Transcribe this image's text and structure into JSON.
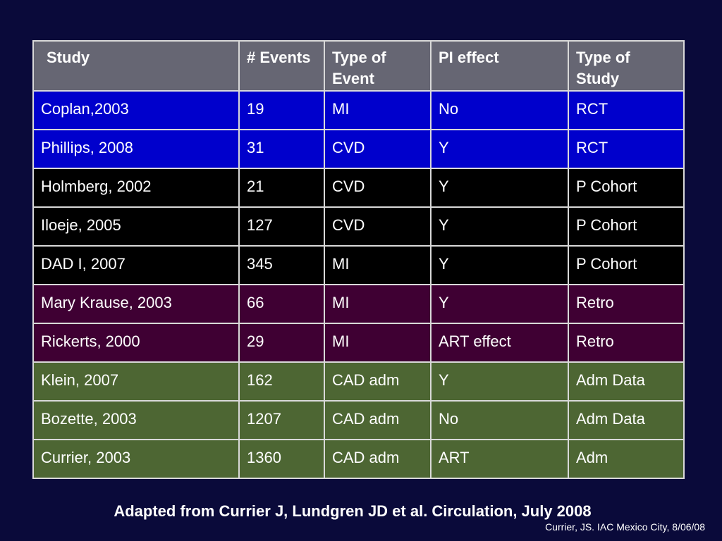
{
  "table": {
    "headers": [
      "Study",
      "# Events",
      "Type of Event",
      "PI effect",
      "Type of Study"
    ],
    "rows": [
      {
        "cells": [
          "Coplan,2003",
          "19",
          "MI",
          "No",
          "RCT"
        ],
        "color": "#0000cc"
      },
      {
        "cells": [
          "Phillips, 2008",
          "31",
          "CVD",
          "Y",
          "RCT"
        ],
        "color": "#0000cc"
      },
      {
        "cells": [
          "Holmberg, 2002",
          "21",
          "CVD",
          "Y",
          "P Cohort"
        ],
        "color": "#000000"
      },
      {
        "cells": [
          "Iloeje, 2005",
          "127",
          "CVD",
          "Y",
          "P Cohort"
        ],
        "color": "#000000"
      },
      {
        "cells": [
          "DAD I, 2007",
          "345",
          "MI",
          "Y",
          "P Cohort"
        ],
        "color": "#000000"
      },
      {
        "cells": [
          "Mary Krause, 2003",
          "66",
          "MI",
          "Y",
          "Retro"
        ],
        "color": "#3f0033"
      },
      {
        "cells": [
          "Rickerts, 2000",
          "29",
          "MI",
          "ART effect",
          "Retro"
        ],
        "color": "#3f0033"
      },
      {
        "cells": [
          "Klein, 2007",
          "162",
          "CAD adm",
          "Y",
          "Adm Data"
        ],
        "color": "#4d6633"
      },
      {
        "cells": [
          "Bozette, 2003",
          "1207",
          "CAD adm",
          "No",
          "Adm Data"
        ],
        "color": "#4d6633"
      },
      {
        "cells": [
          "Currier, 2003",
          "1360",
          "CAD adm",
          "ART",
          "Adm"
        ],
        "color": "#4d6633"
      }
    ]
  },
  "caption": "Adapted from Currier J, Lundgren JD et al. Circulation, July 2008",
  "credit": "Currier, JS. IAC Mexico City, 8/06/08",
  "colors": {
    "background": "#0a0a3a",
    "header": "#666673",
    "grid": "#d9d9d9"
  }
}
